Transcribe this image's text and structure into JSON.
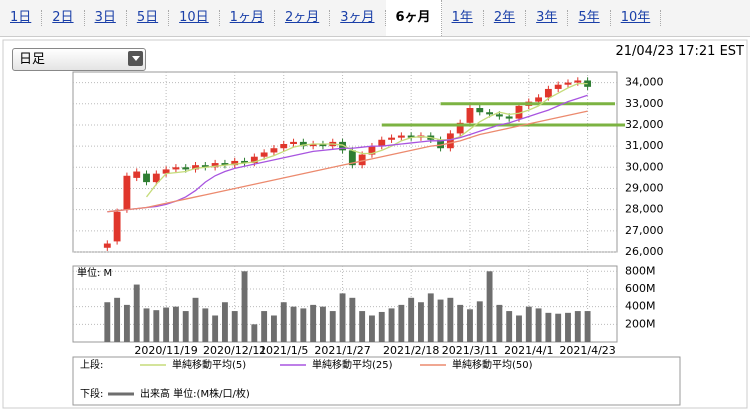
{
  "tabs": [
    "1日",
    "2日",
    "3日",
    "5日",
    "10日",
    "1ヶ月",
    "2ヶ月",
    "3ヶ月",
    "6ヶ月",
    "1年",
    "2年",
    "3年",
    "5年",
    "10年"
  ],
  "selected_tab": 8,
  "dropdown": "日足",
  "timestamp": "21/04/23 17:21 EST",
  "chart_data": [
    {
      "type": "candlestick",
      "legend_label": "上段:",
      "up_color": "#e0362c",
      "down_color": "#2e7d32",
      "open": [
        26200,
        26500,
        28000,
        29500,
        29700,
        29300,
        29700,
        29900,
        30000,
        29900,
        30100,
        30000,
        30200,
        30100,
        30300,
        30200,
        30500,
        30700,
        30900,
        31100,
        31200,
        31000,
        31100,
        31000,
        31200,
        30800,
        30100,
        30600,
        31000,
        31300,
        31400,
        31500,
        31400,
        31500,
        31300,
        30900,
        31600,
        32100,
        32800,
        32600,
        32500,
        32400,
        32300,
        32900,
        33100,
        33300,
        33700,
        33900,
        34000,
        34100
      ],
      "high": [
        26550,
        28050,
        29750,
        29950,
        29850,
        29850,
        30050,
        30150,
        30150,
        30250,
        30250,
        30350,
        30350,
        30450,
        30450,
        30650,
        30850,
        31050,
        31250,
        31350,
        31350,
        31250,
        31250,
        31350,
        31350,
        30950,
        30750,
        31150,
        31450,
        31550,
        31650,
        31650,
        31650,
        31650,
        31450,
        31750,
        32250,
        32950,
        32950,
        32750,
        32650,
        32550,
        33050,
        33250,
        33450,
        33850,
        34050,
        34150,
        34250,
        34250
      ],
      "low": [
        26050,
        26350,
        27850,
        29350,
        29150,
        29150,
        29550,
        29750,
        29750,
        29750,
        29850,
        29850,
        29950,
        29950,
        30050,
        30050,
        30350,
        30550,
        30750,
        30950,
        30850,
        30850,
        30850,
        30850,
        30650,
        29950,
        29950,
        30450,
        30850,
        31150,
        31250,
        31250,
        31250,
        31150,
        30750,
        30750,
        31450,
        31950,
        32450,
        32350,
        32250,
        32150,
        32150,
        32750,
        32950,
        33150,
        33550,
        33750,
        33850,
        33650
      ],
      "close": [
        26400,
        27900,
        29600,
        29800,
        29300,
        29700,
        29900,
        30000,
        29900,
        30100,
        30000,
        30200,
        30100,
        30300,
        30200,
        30500,
        30700,
        30900,
        31100,
        31200,
        31000,
        31100,
        31000,
        31200,
        30800,
        30100,
        30600,
        31000,
        31300,
        31400,
        31500,
        31400,
        31500,
        31300,
        30900,
        31600,
        32100,
        32800,
        32600,
        32500,
        32400,
        32300,
        32900,
        33100,
        33300,
        33700,
        33900,
        34000,
        34100,
        33800
      ],
      "series": [
        {
          "name": "単純移動平均(5)",
          "color": "#c5dc7a",
          "values": [
            null,
            null,
            null,
            null,
            28600,
            29200,
            29700,
            29750,
            29800,
            29950,
            30000,
            30050,
            30100,
            30150,
            30200,
            30250,
            30400,
            30550,
            30750,
            30950,
            31050,
            31100,
            31100,
            31100,
            31050,
            30800,
            30650,
            30650,
            30800,
            31000,
            31250,
            31400,
            31450,
            31400,
            31300,
            31300,
            31450,
            31800,
            32150,
            32400,
            32600,
            32500,
            32550,
            32700,
            32900,
            33250,
            33500,
            33750,
            33950,
            33950
          ]
        },
        {
          "name": "単純移動平均(25)",
          "color": "#a855e0",
          "values": [
            27900,
            27950,
            28000,
            28050,
            28100,
            28150,
            28250,
            28400,
            28600,
            28900,
            29300,
            29600,
            29800,
            29950,
            30050,
            30150,
            30250,
            30350,
            30450,
            30550,
            30650,
            30750,
            30800,
            30850,
            30900,
            30900,
            30950,
            31000,
            31000,
            31050,
            31100,
            31150,
            31200,
            31250,
            31250,
            31300,
            31400,
            31550,
            31700,
            31850,
            32000,
            32100,
            32250,
            32400,
            32550,
            32700,
            32900,
            33100,
            33250,
            33400
          ]
        },
        {
          "name": "単純移動平均(50)",
          "color": "#ec8a6e",
          "values": [
            27900,
            27950,
            28000,
            28050,
            28100,
            28200,
            28300,
            28400,
            28500,
            28600,
            28700,
            28800,
            28900,
            29000,
            29100,
            29200,
            29300,
            29400,
            29500,
            29600,
            29700,
            29800,
            29900,
            30000,
            30100,
            30200,
            30300,
            30400,
            30500,
            30600,
            30700,
            30800,
            30900,
            31000,
            31050,
            31150,
            31250,
            31400,
            31550,
            31650,
            31750,
            31850,
            31950,
            32050,
            32150,
            32250,
            32350,
            32450,
            32550,
            32650
          ]
        }
      ],
      "hlines": [
        {
          "value": 33000,
          "from": 34,
          "color": "#7cb342"
        },
        {
          "value": 32000,
          "from": 28,
          "color": "#7cb342"
        }
      ],
      "ylim": [
        26000,
        34500
      ],
      "yticks": [
        {
          "value": 26000,
          "label": "26,000"
        },
        {
          "value": 27000,
          "label": "27,000"
        },
        {
          "value": 28000,
          "label": "28,000"
        },
        {
          "value": 29000,
          "label": "29,000"
        },
        {
          "value": 30000,
          "label": "30,000"
        },
        {
          "value": 31000,
          "label": "31,000"
        },
        {
          "value": 32000,
          "label": "32,000"
        },
        {
          "value": 33000,
          "label": "33,000"
        },
        {
          "value": 34000,
          "label": "34,000"
        }
      ],
      "grid": true
    },
    {
      "type": "bar",
      "legend_label": "下段:",
      "unit_label": "単位: M",
      "categories": [
        null,
        null,
        null,
        null,
        null,
        null,
        "2020/11/19",
        null,
        null,
        null,
        null,
        null,
        null,
        "2020/12/11",
        null,
        null,
        null,
        null,
        "2021/1/5",
        null,
        null,
        null,
        null,
        null,
        "2021/1/27",
        null,
        null,
        null,
        null,
        null,
        null,
        "2021/2/18",
        null,
        null,
        null,
        null,
        null,
        "2021/3/11",
        null,
        null,
        null,
        null,
        null,
        "2021/4/1",
        null,
        null,
        null,
        null,
        null,
        "2021/4/23"
      ],
      "series": [
        {
          "name": "出来高 単位:(M株/口/枚)",
          "color": "#6e6e6e",
          "values": [
            450,
            500,
            420,
            650,
            380,
            360,
            390,
            400,
            350,
            500,
            380,
            300,
            450,
            350,
            800,
            200,
            350,
            300,
            450,
            400,
            380,
            420,
            400,
            350,
            550,
            500,
            350,
            300,
            340,
            380,
            420,
            500,
            450,
            550,
            480,
            500,
            420,
            370,
            460,
            800,
            420,
            350,
            300,
            400,
            380,
            330,
            320,
            330,
            350,
            350
          ]
        }
      ],
      "ylim": [
        0,
        860
      ],
      "yticks": [
        {
          "value": 200,
          "label": "200M"
        },
        {
          "value": 400,
          "label": "400M"
        },
        {
          "value": 600,
          "label": "600M"
        },
        {
          "value": 800,
          "label": "800M"
        }
      ],
      "grid": true
    }
  ]
}
